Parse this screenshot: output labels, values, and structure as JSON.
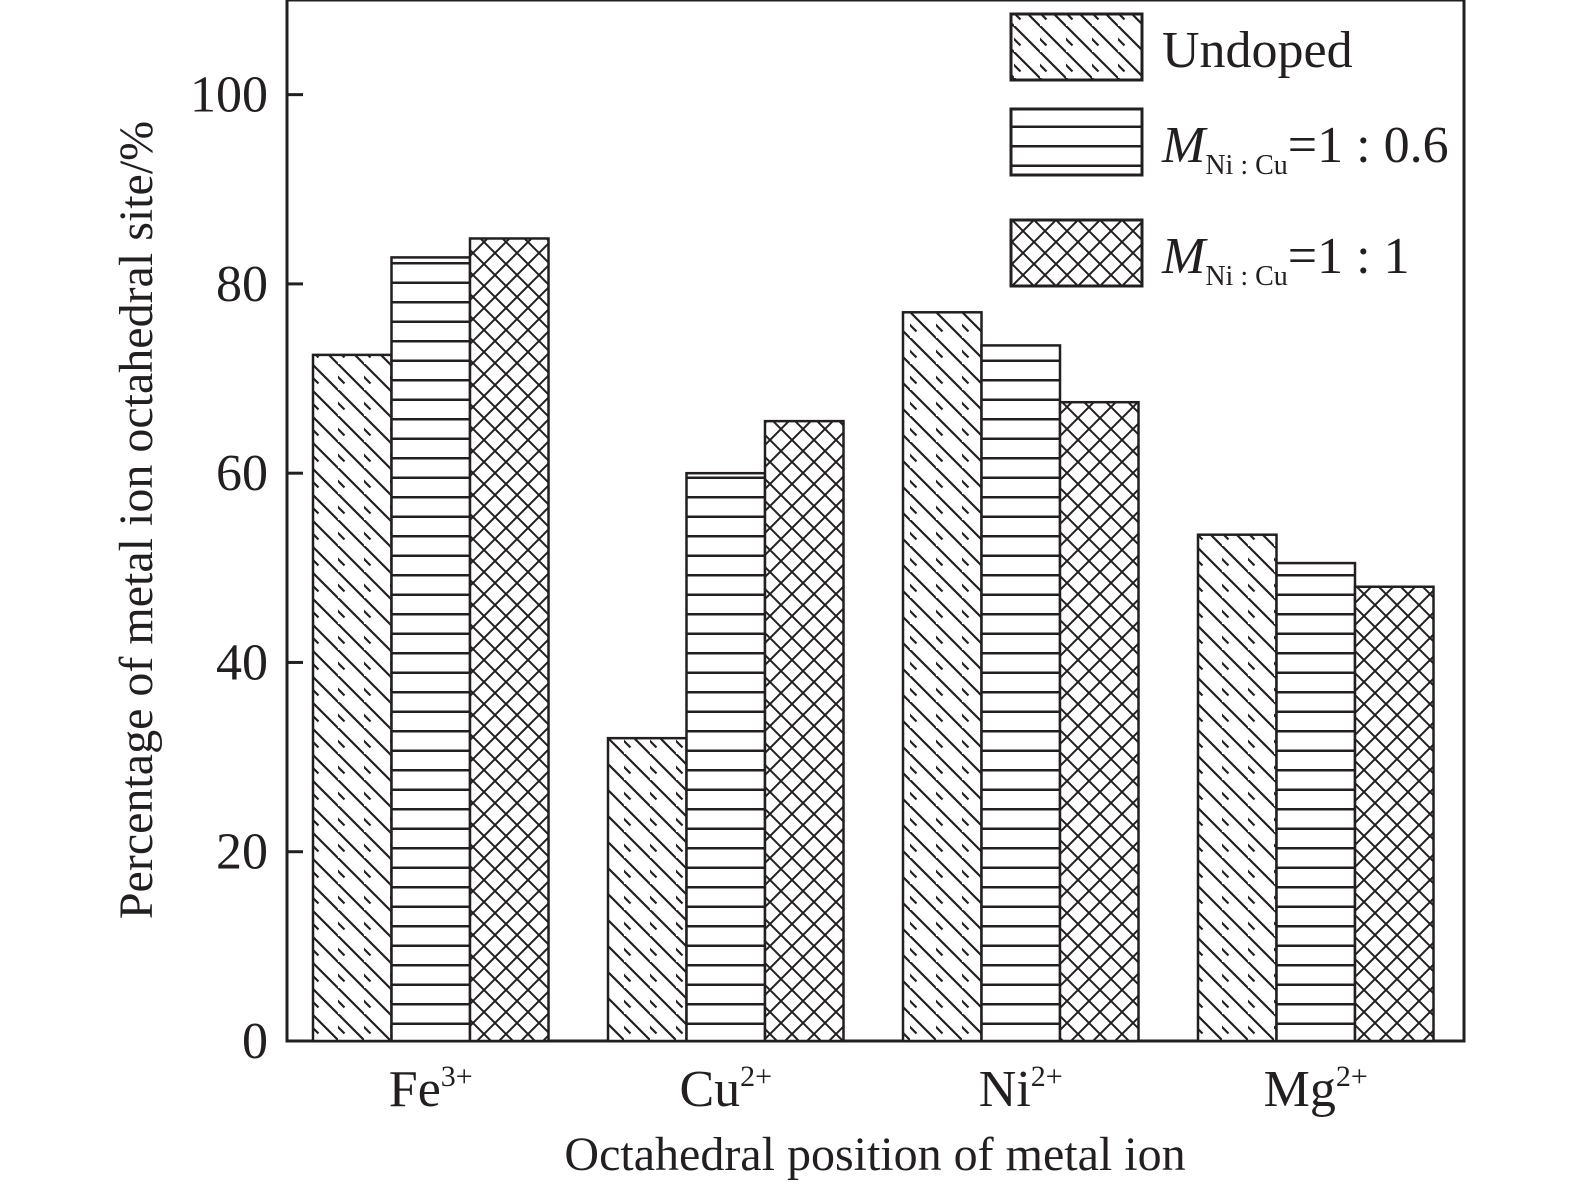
{
  "chart_data": {
    "type": "bar",
    "xlabel": "Octahedral position of metal ion",
    "ylabel": "Percentage of metal ion octahedral site/%",
    "ylim": [
      0,
      110
    ],
    "yticks": [
      "0",
      "20",
      "40",
      "60",
      "80",
      "100"
    ],
    "grid": false,
    "legend_position": "top-right",
    "categories": [
      {
        "base": "Fe",
        "charge": "3+"
      },
      {
        "base": "Cu",
        "charge": "2+"
      },
      {
        "base": "Ni",
        "charge": "2+"
      },
      {
        "base": "Mg",
        "charge": "2+"
      }
    ],
    "series": [
      {
        "legend": {
          "main": "Undoped",
          "sub": "",
          "tail": ""
        },
        "pattern": "diagonal-hatch",
        "values": [
          72.5,
          32,
          77,
          53.5
        ]
      },
      {
        "legend": {
          "main": "M",
          "sub": "Ni : Cu",
          "tail": "=1 : 0.6"
        },
        "pattern": "horizontal-lines",
        "values": [
          82.8,
          60,
          73.5,
          50.5
        ]
      },
      {
        "legend": {
          "main": "M",
          "sub": "Ni : Cu",
          "tail": "=1 : 1"
        },
        "pattern": "cross-hatch",
        "values": [
          84.8,
          65.5,
          67.5,
          48
        ]
      }
    ],
    "colors": {
      "ink": "#231f20",
      "background": "#ffffff"
    }
  }
}
